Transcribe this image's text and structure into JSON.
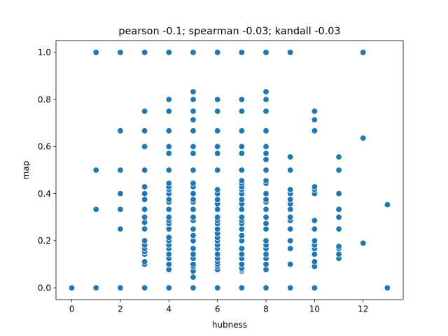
{
  "chart_data": {
    "type": "scatter",
    "title": "pearson -0.1; spearman -0.03; kandall -0.03",
    "xlabel": "hubness",
    "ylabel": "map",
    "xlim": [
      -0.65,
      13.65
    ],
    "ylim": [
      -0.05,
      1.05
    ],
    "xticks": [
      0,
      2,
      4,
      6,
      8,
      10,
      12
    ],
    "xtick_labels": [
      "0",
      "2",
      "4",
      "6",
      "8",
      "10",
      "12"
    ],
    "yticks": [
      0.0,
      0.2,
      0.4,
      0.6,
      0.8,
      1.0
    ],
    "ytick_labels": [
      "0.0",
      "0.2",
      "0.4",
      "0.6",
      "0.8",
      "1.0"
    ],
    "grid": false,
    "marker_color": "#1f77b4",
    "marker_edge_color": "#ffffff",
    "points": [
      [
        0,
        0.0
      ],
      [
        1,
        0.0
      ],
      [
        1,
        0.333
      ],
      [
        1,
        0.5
      ],
      [
        1,
        1.0
      ],
      [
        2,
        0.0
      ],
      [
        2,
        0.25
      ],
      [
        2,
        0.333
      ],
      [
        2,
        0.4
      ],
      [
        2,
        0.5
      ],
      [
        2,
        0.667
      ],
      [
        2,
        1.0
      ],
      [
        3,
        0.0
      ],
      [
        3,
        0.1
      ],
      [
        3,
        0.111
      ],
      [
        3,
        0.143
      ],
      [
        3,
        0.154
      ],
      [
        3,
        0.167
      ],
      [
        3,
        0.182
      ],
      [
        3,
        0.2
      ],
      [
        3,
        0.25
      ],
      [
        3,
        0.278
      ],
      [
        3,
        0.3
      ],
      [
        3,
        0.333
      ],
      [
        3,
        0.375
      ],
      [
        3,
        0.4
      ],
      [
        3,
        0.429
      ],
      [
        3,
        0.5
      ],
      [
        3,
        0.6
      ],
      [
        3,
        0.667
      ],
      [
        3,
        0.75
      ],
      [
        3,
        1.0
      ],
      [
        4,
        0.0
      ],
      [
        4,
        0.077
      ],
      [
        4,
        0.1
      ],
      [
        4,
        0.125
      ],
      [
        4,
        0.143
      ],
      [
        4,
        0.167
      ],
      [
        4,
        0.182
      ],
      [
        4,
        0.2
      ],
      [
        4,
        0.214
      ],
      [
        4,
        0.25
      ],
      [
        4,
        0.273
      ],
      [
        4,
        0.286
      ],
      [
        4,
        0.3
      ],
      [
        4,
        0.333
      ],
      [
        4,
        0.364
      ],
      [
        4,
        0.375
      ],
      [
        4,
        0.4
      ],
      [
        4,
        0.417
      ],
      [
        4,
        0.429
      ],
      [
        4,
        0.444
      ],
      [
        4,
        0.5
      ],
      [
        4,
        0.571
      ],
      [
        4,
        0.6
      ],
      [
        4,
        0.667
      ],
      [
        4,
        0.75
      ],
      [
        4,
        0.8
      ],
      [
        4,
        1.0
      ],
      [
        5,
        0.0
      ],
      [
        5,
        0.045
      ],
      [
        5,
        0.071
      ],
      [
        5,
        0.091
      ],
      [
        5,
        0.1
      ],
      [
        5,
        0.125
      ],
      [
        5,
        0.143
      ],
      [
        5,
        0.167
      ],
      [
        5,
        0.2
      ],
      [
        5,
        0.222
      ],
      [
        5,
        0.25
      ],
      [
        5,
        0.286
      ],
      [
        5,
        0.3
      ],
      [
        5,
        0.333
      ],
      [
        5,
        0.364
      ],
      [
        5,
        0.375
      ],
      [
        5,
        0.4
      ],
      [
        5,
        0.429
      ],
      [
        5,
        0.444
      ],
      [
        5,
        0.5
      ],
      [
        5,
        0.571
      ],
      [
        5,
        0.6
      ],
      [
        5,
        0.667
      ],
      [
        5,
        0.714
      ],
      [
        5,
        0.75
      ],
      [
        5,
        0.8
      ],
      [
        5,
        0.833
      ],
      [
        5,
        1.0
      ],
      [
        6,
        0.0
      ],
      [
        6,
        0.077
      ],
      [
        6,
        0.091
      ],
      [
        6,
        0.1
      ],
      [
        6,
        0.111
      ],
      [
        6,
        0.125
      ],
      [
        6,
        0.143
      ],
      [
        6,
        0.167
      ],
      [
        6,
        0.182
      ],
      [
        6,
        0.2
      ],
      [
        6,
        0.214
      ],
      [
        6,
        0.231
      ],
      [
        6,
        0.25
      ],
      [
        6,
        0.273
      ],
      [
        6,
        0.286
      ],
      [
        6,
        0.3
      ],
      [
        6,
        0.333
      ],
      [
        6,
        0.357
      ],
      [
        6,
        0.375
      ],
      [
        6,
        0.4
      ],
      [
        6,
        0.417
      ],
      [
        6,
        0.5
      ],
      [
        6,
        0.571
      ],
      [
        6,
        0.6
      ],
      [
        6,
        0.667
      ],
      [
        6,
        0.75
      ],
      [
        6,
        0.8
      ],
      [
        6,
        1.0
      ],
      [
        7,
        0.0
      ],
      [
        7,
        0.071
      ],
      [
        7,
        0.077
      ],
      [
        7,
        0.083
      ],
      [
        7,
        0.1
      ],
      [
        7,
        0.125
      ],
      [
        7,
        0.143
      ],
      [
        7,
        0.167
      ],
      [
        7,
        0.2
      ],
      [
        7,
        0.222
      ],
      [
        7,
        0.25
      ],
      [
        7,
        0.273
      ],
      [
        7,
        0.286
      ],
      [
        7,
        0.3
      ],
      [
        7,
        0.333
      ],
      [
        7,
        0.357
      ],
      [
        7,
        0.375
      ],
      [
        7,
        0.4
      ],
      [
        7,
        0.417
      ],
      [
        7,
        0.429
      ],
      [
        7,
        0.444
      ],
      [
        7,
        0.455
      ],
      [
        7,
        0.5
      ],
      [
        7,
        0.571
      ],
      [
        7,
        0.6
      ],
      [
        7,
        0.667
      ],
      [
        7,
        0.75
      ],
      [
        7,
        0.8
      ],
      [
        7,
        1.0
      ],
      [
        8,
        0.0
      ],
      [
        8,
        0.077
      ],
      [
        8,
        0.1
      ],
      [
        8,
        0.125
      ],
      [
        8,
        0.143
      ],
      [
        8,
        0.167
      ],
      [
        8,
        0.182
      ],
      [
        8,
        0.2
      ],
      [
        8,
        0.25
      ],
      [
        8,
        0.273
      ],
      [
        8,
        0.3
      ],
      [
        8,
        0.333
      ],
      [
        8,
        0.364
      ],
      [
        8,
        0.375
      ],
      [
        8,
        0.4
      ],
      [
        8,
        0.444
      ],
      [
        8,
        0.455
      ],
      [
        8,
        0.5
      ],
      [
        8,
        0.545
      ],
      [
        8,
        0.571
      ],
      [
        8,
        0.6
      ],
      [
        8,
        0.667
      ],
      [
        8,
        0.75
      ],
      [
        8,
        0.8
      ],
      [
        8,
        0.833
      ],
      [
        8,
        1.0
      ],
      [
        9,
        0.0
      ],
      [
        9,
        0.1
      ],
      [
        9,
        0.167
      ],
      [
        9,
        0.2
      ],
      [
        9,
        0.25
      ],
      [
        9,
        0.286
      ],
      [
        9,
        0.3
      ],
      [
        9,
        0.333
      ],
      [
        9,
        0.357
      ],
      [
        9,
        0.375
      ],
      [
        9,
        0.4
      ],
      [
        9,
        0.417
      ],
      [
        9,
        0.5
      ],
      [
        9,
        0.556
      ],
      [
        9,
        1.0
      ],
      [
        10,
        0.0
      ],
      [
        10,
        0.091
      ],
      [
        10,
        0.111
      ],
      [
        10,
        0.143
      ],
      [
        10,
        0.167
      ],
      [
        10,
        0.182
      ],
      [
        10,
        0.2
      ],
      [
        10,
        0.25
      ],
      [
        10,
        0.286
      ],
      [
        10,
        0.4
      ],
      [
        10,
        0.417
      ],
      [
        10,
        0.429
      ],
      [
        10,
        0.667
      ],
      [
        10,
        0.714
      ],
      [
        10,
        0.75
      ],
      [
        11,
        0.125
      ],
      [
        11,
        0.143
      ],
      [
        11,
        0.167
      ],
      [
        11,
        0.176
      ],
      [
        11,
        0.25
      ],
      [
        11,
        0.3
      ],
      [
        11,
        0.333
      ],
      [
        11,
        0.4
      ],
      [
        11,
        0.5
      ],
      [
        11,
        0.556
      ],
      [
        12,
        0.19
      ],
      [
        12,
        0.636
      ],
      [
        12,
        1.0
      ],
      [
        13,
        0.0
      ],
      [
        13,
        0.353
      ]
    ]
  }
}
